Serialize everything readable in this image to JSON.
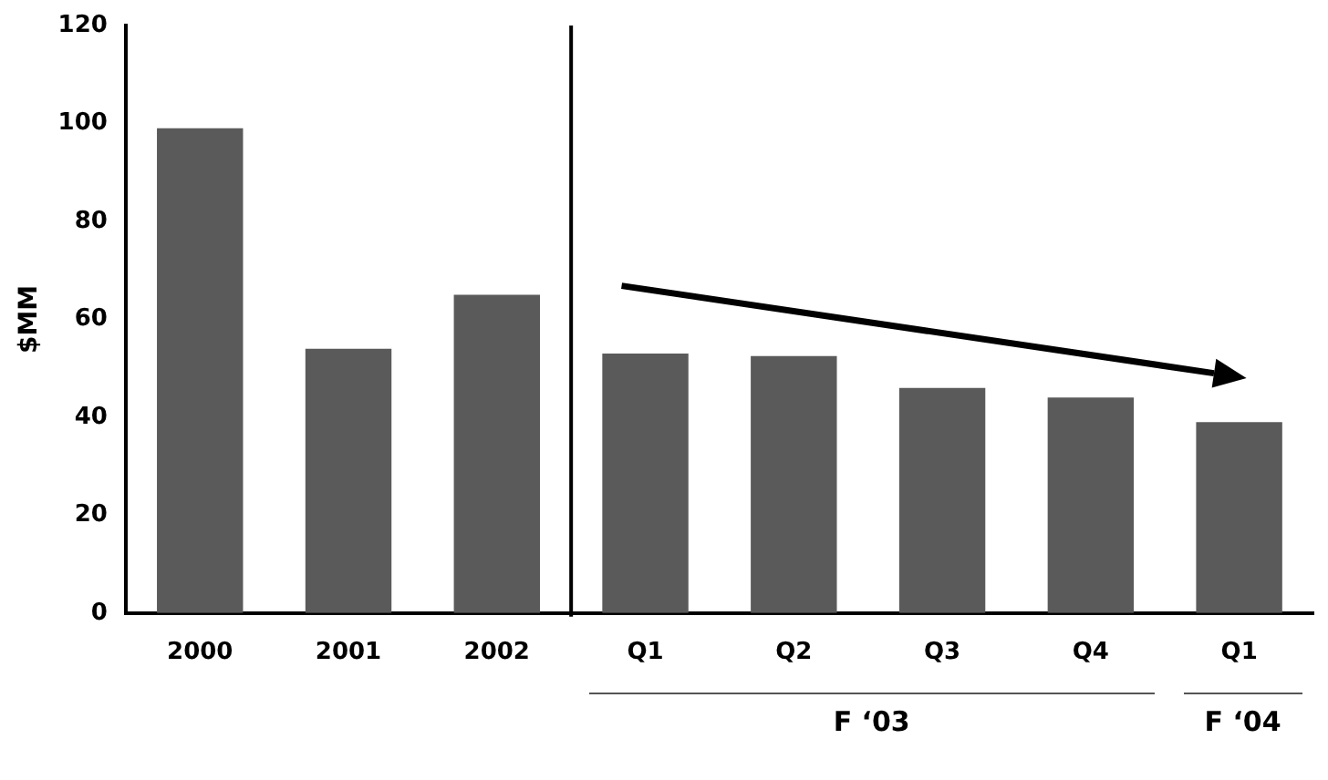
{
  "chart_data": {
    "type": "bar",
    "ylabel": "$MM",
    "categories": [
      "2000",
      "2001",
      "2002",
      "Q1",
      "Q2",
      "Q3",
      "Q4",
      "Q1"
    ],
    "values": [
      99,
      54,
      65,
      53,
      52.5,
      46,
      44,
      39
    ],
    "color": "#5a5a5a",
    "ylim": [
      0,
      120
    ],
    "yticks": [
      0,
      20,
      40,
      60,
      80,
      100,
      120
    ],
    "grid": false,
    "legend": false,
    "annotations": [
      "F ‘03",
      "F ‘04"
    ]
  }
}
